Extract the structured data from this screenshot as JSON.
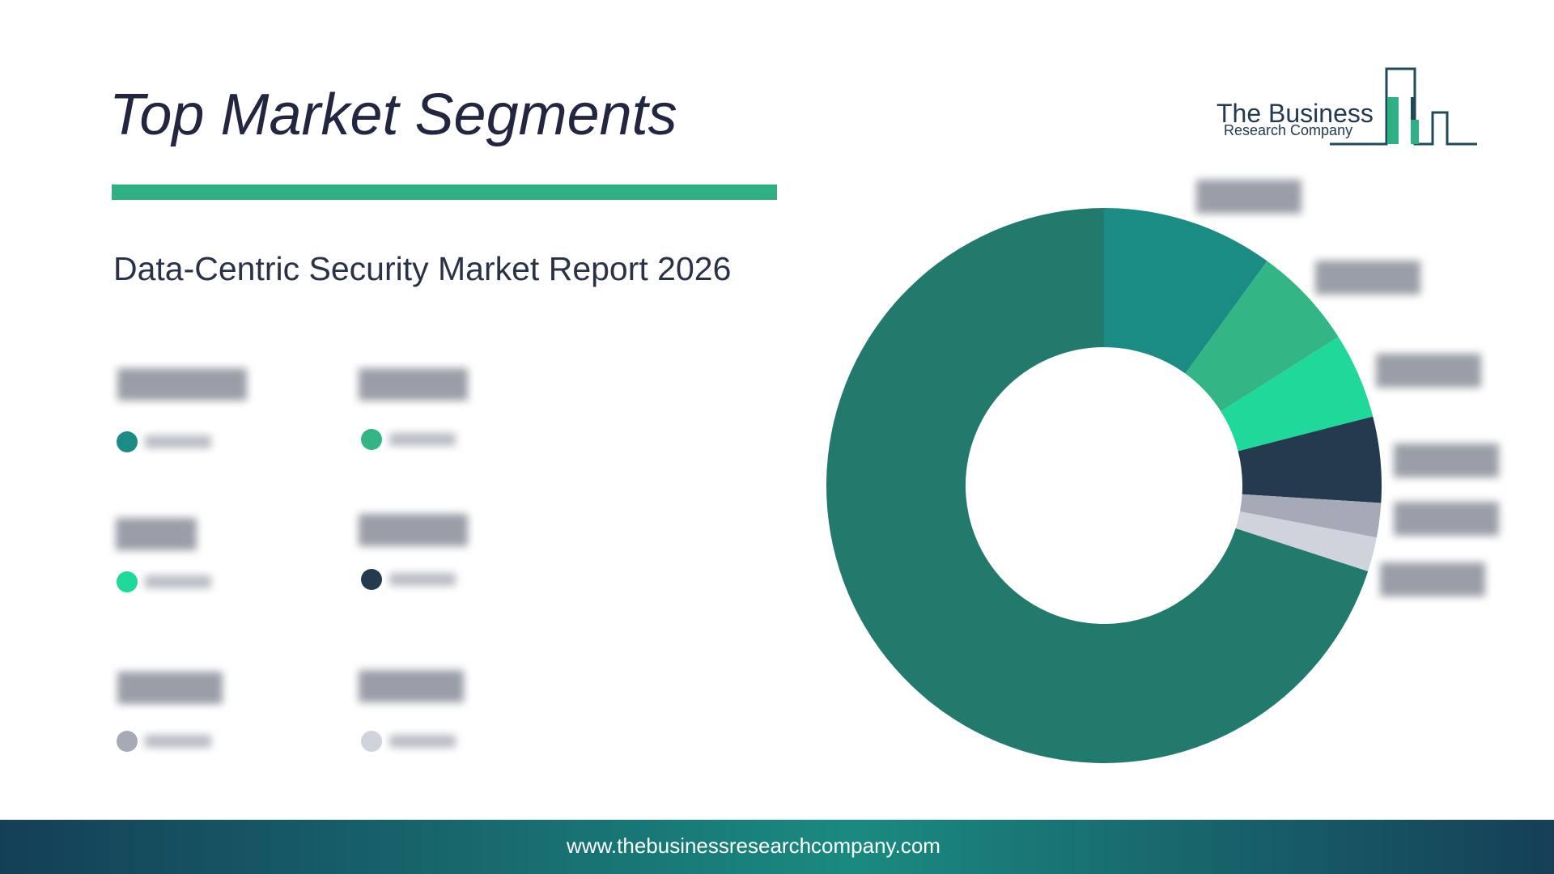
{
  "header": {
    "title": "Top Market Segments",
    "subtitle": "Data-Centric Security Market Report 2026",
    "logo_line1": "The Business",
    "logo_line2": "Research Company"
  },
  "chart_data": {
    "type": "donut",
    "values": [
      10,
      6,
      5,
      5,
      2,
      2,
      70
    ],
    "colors": [
      "#1a8c84",
      "#34b585",
      "#1ed99a",
      "#243a4e",
      "#a6aab6",
      "#d0d3dc",
      "#227a6c"
    ]
  },
  "footer": {
    "url": "www.thebusinessresearchcompany.com"
  }
}
